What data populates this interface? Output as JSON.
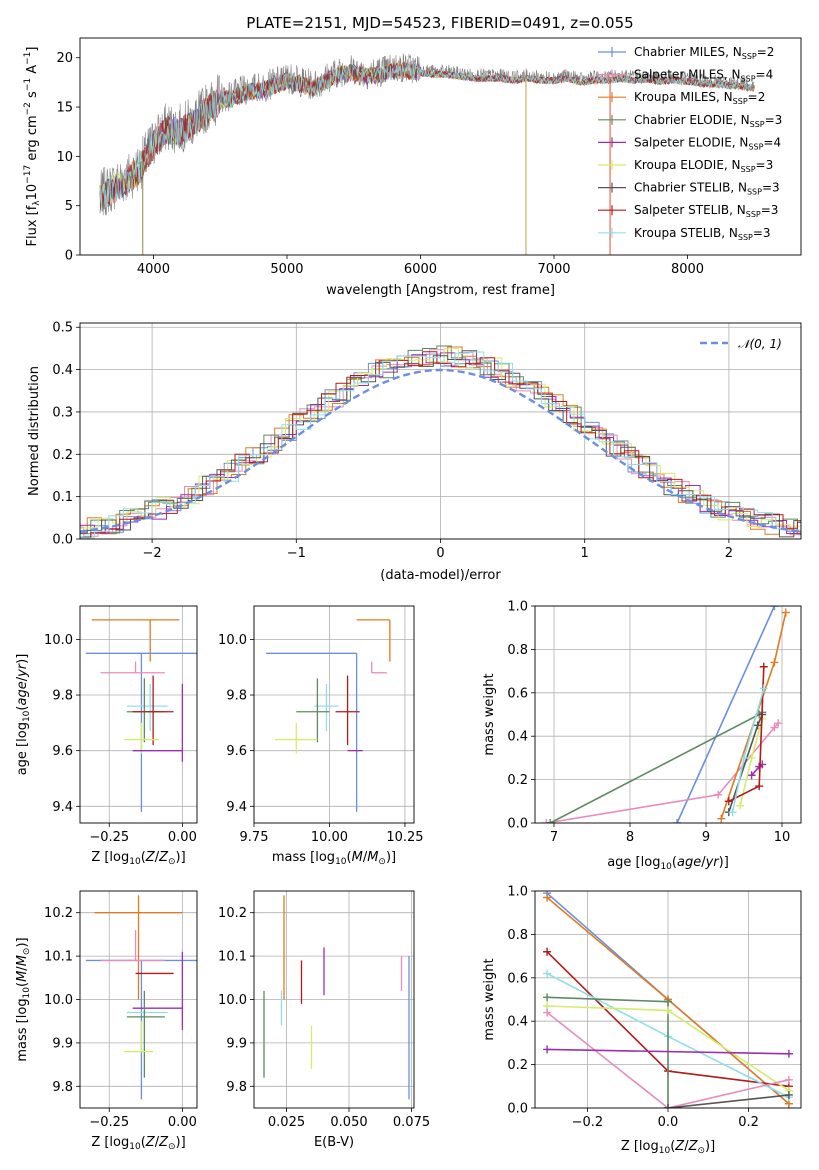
{
  "figure": {
    "title": "PLATE=2151, MJD=54523, FIBERID=0491, z=0.055"
  },
  "legend_colors": {
    "chabrier_miles": "#6b8fe0",
    "salpeter_miles": "#e88bbd",
    "kroupa_miles": "#e07b22",
    "chabrier_elodie": "#5e8a62",
    "salpeter_elodie": "#9a2fb0",
    "kroupa_elodie": "#d4ec6a",
    "chabrier_stelib": "#555555",
    "salpeter_stelib": "#b31b1b",
    "kroupa_stelib": "#8fdfe8"
  },
  "chart_data": [
    {
      "id": "spectrum",
      "type": "line",
      "title": "PLATE=2151, MJD=54523, FIBERID=0491, z=0.055",
      "xlabel": "wavelength [Angstrom, rest frame]",
      "ylabel_parts": [
        "Flux [f",
        "λ",
        "10",
        "−17",
        " erg cm",
        "−2",
        " s",
        "−1",
        " A",
        "−1",
        "]"
      ],
      "xlim": [
        3450,
        8850
      ],
      "ylim": [
        0,
        22
      ],
      "xticks": [
        4000,
        5000,
        6000,
        7000,
        8000
      ],
      "yticks": [
        0,
        5,
        10,
        15,
        20
      ],
      "grid": false,
      "legend_position": "upper-right",
      "envelope": {
        "x": [
          3600,
          3700,
          3800,
          3900,
          4000,
          4100,
          4200,
          4300,
          4400,
          4500,
          4600,
          4700,
          4800,
          4900,
          5000,
          5100,
          5200,
          5300,
          5400,
          5500,
          5600,
          5700,
          5800,
          5900,
          6000,
          6100,
          6200,
          6300,
          6400,
          6500,
          6600,
          6700,
          6800,
          6900,
          7000,
          7100,
          7200,
          7300,
          7400,
          7500,
          7600,
          7700,
          7800,
          7900,
          8000,
          8100,
          8200,
          8300,
          8400,
          8500
        ],
        "y": [
          6.0,
          7.0,
          7.8,
          9.0,
          11.5,
          13.0,
          12.8,
          13.6,
          15.0,
          16.0,
          16.2,
          16.8,
          17.0,
          17.4,
          18.0,
          17.6,
          17.2,
          18.0,
          18.6,
          18.8,
          18.4,
          18.6,
          19.0,
          19.0,
          18.8,
          18.6,
          18.6,
          18.4,
          18.2,
          18.2,
          18.2,
          18.0,
          18.2,
          18.0,
          18.0,
          18.2,
          17.8,
          18.0,
          18.0,
          18.2,
          18.0,
          18.1,
          17.9,
          18.0,
          17.9,
          17.7,
          17.6,
          17.5,
          17.4,
          17.2
        ]
      },
      "series": [
        {
          "name_parts": [
            "Chabrier MILES, N",
            "SSP",
            "=2"
          ],
          "color": "#6b8fe0"
        },
        {
          "name_parts": [
            "Salpeter MILES, N",
            "SSP",
            "=4"
          ],
          "color": "#e88bbd"
        },
        {
          "name_parts": [
            "Kroupa MILES, N",
            "SSP",
            "=2"
          ],
          "color": "#e07b22"
        },
        {
          "name_parts": [
            "Chabrier ELODIE, N",
            "SSP",
            "=3"
          ],
          "color": "#5e8a62"
        },
        {
          "name_parts": [
            "Salpeter ELODIE, N",
            "SSP",
            "=4"
          ],
          "color": "#9a2fb0"
        },
        {
          "name_parts": [
            "Kroupa ELODIE, N",
            "SSP",
            "=3"
          ],
          "color": "#d4ec6a"
        },
        {
          "name_parts": [
            "Chabrier STELIB, N",
            "SSP",
            "=3"
          ],
          "color": "#555555"
        },
        {
          "name_parts": [
            "Salpeter STELIB, N",
            "SSP",
            "=3"
          ],
          "color": "#b31b1b"
        },
        {
          "name_parts": [
            "Kroupa STELIB, N",
            "SSP",
            "=3"
          ],
          "color": "#8fdfe8"
        }
      ],
      "vertical_drops": [
        {
          "x": 3920,
          "color": "#8a8a40"
        },
        {
          "x": 6790,
          "color": "#c8a040"
        },
        {
          "x": 7420,
          "color": "#e0502a"
        }
      ]
    },
    {
      "id": "residuals",
      "type": "histogram",
      "xlabel": "(data-model)/error",
      "ylabel": "Normed distribution",
      "xlim": [
        -2.5,
        2.5
      ],
      "ylim": [
        0,
        0.51
      ],
      "xticks": [
        -2,
        -1,
        0,
        1,
        2
      ],
      "yticks": [
        0.0,
        0.1,
        0.2,
        0.3,
        0.4,
        0.5
      ],
      "grid": true,
      "legend_position": "upper-right",
      "reference_curve": {
        "name": "𝒩(0, 1)",
        "color": "#6b8fe0"
      }
    },
    {
      "id": "age_vs_Z",
      "type": "errorbar",
      "xlabel": "Z [log10(Z/Z⊙)]",
      "ylabel": "age  [log10(age/yr)]",
      "xlim": [
        -0.35,
        0.05
      ],
      "ylim": [
        9.34,
        10.12
      ],
      "xticks": [
        -0.25,
        0.0
      ],
      "yticks": [
        9.4,
        9.6,
        9.8,
        10.0
      ],
      "grid": true,
      "points": [
        {
          "color": "#e07b22",
          "x": -0.11,
          "xerr_lo": 0.2,
          "xerr_hi": 0.1,
          "y": 10.07,
          "yerr_lo": 0.15,
          "yerr_hi": 0.0
        },
        {
          "color": "#6b8fe0",
          "x": -0.14,
          "xerr_lo": 0.19,
          "xerr_hi": 0.19,
          "y": 9.95,
          "yerr_lo": 0.57,
          "yerr_hi": 0.0
        },
        {
          "color": "#e88bbd",
          "x": -0.16,
          "xerr_lo": 0.12,
          "xerr_hi": 0.1,
          "y": 9.88,
          "yerr_lo": 0.0,
          "yerr_hi": 0.04
        },
        {
          "color": "#8fdfe8",
          "x": -0.11,
          "xerr_lo": 0.08,
          "xerr_hi": 0.06,
          "y": 9.76,
          "yerr_lo": 0.09,
          "yerr_hi": 0.08
        },
        {
          "color": "#5e8a62",
          "x": -0.13,
          "xerr_lo": 0.06,
          "xerr_hi": 0.07,
          "y": 9.74,
          "yerr_lo": 0.11,
          "yerr_hi": 0.12
        },
        {
          "color": "#b31b1b",
          "x": -0.1,
          "xerr_lo": 0.07,
          "xerr_hi": 0.07,
          "y": 9.74,
          "yerr_lo": 0.12,
          "yerr_hi": 0.13
        },
        {
          "color": "#d4ec6a",
          "x": -0.14,
          "xerr_lo": 0.06,
          "xerr_hi": 0.06,
          "y": 9.64,
          "yerr_lo": 0.05,
          "yerr_hi": 0.06
        },
        {
          "color": "#9a2fb0",
          "x": -0.11,
          "xerr_lo": 0.06,
          "xerr_hi": 0.11,
          "y": 9.6,
          "yerr_lo": 0.0,
          "yerr_hi": 0.0
        },
        {
          "color": "#9a2fb0",
          "x": 0.0,
          "xerr_lo": 0.0,
          "xerr_hi": 0.0,
          "y": 9.7,
          "yerr_lo": 0.14,
          "yerr_hi": 0.14
        }
      ]
    },
    {
      "id": "age_vs_mass",
      "type": "errorbar",
      "xlabel": "mass [log10(M/M⊙)]",
      "ylabel": "",
      "xlim": [
        9.75,
        10.28
      ],
      "ylim": [
        9.34,
        10.12
      ],
      "xticks": [
        9.75,
        10.0,
        10.25
      ],
      "yticks": [
        9.4,
        9.6,
        9.8,
        10.0
      ],
      "grid": true,
      "points": [
        {
          "color": "#e07b22",
          "x": 10.2,
          "xerr_lo": 0.11,
          "xerr_hi": 0.0,
          "y": 10.07,
          "yerr_lo": 0.15,
          "yerr_hi": 0.0
        },
        {
          "color": "#6b8fe0",
          "x": 10.09,
          "xerr_lo": 0.3,
          "xerr_hi": 0.0,
          "y": 9.95,
          "yerr_lo": 0.57,
          "yerr_hi": 0.0
        },
        {
          "color": "#e88bbd",
          "x": 10.14,
          "xerr_lo": 0.0,
          "xerr_hi": 0.05,
          "y": 9.88,
          "yerr_lo": 0.0,
          "yerr_hi": 0.04
        },
        {
          "color": "#8fdfe8",
          "x": 9.99,
          "xerr_lo": 0.04,
          "xerr_hi": 0.04,
          "y": 9.76,
          "yerr_lo": 0.09,
          "yerr_hi": 0.08
        },
        {
          "color": "#5e8a62",
          "x": 9.96,
          "xerr_lo": 0.07,
          "xerr_hi": 0.04,
          "y": 9.74,
          "yerr_lo": 0.11,
          "yerr_hi": 0.12
        },
        {
          "color": "#b31b1b",
          "x": 10.06,
          "xerr_lo": 0.04,
          "xerr_hi": 0.04,
          "y": 9.74,
          "yerr_lo": 0.12,
          "yerr_hi": 0.13
        },
        {
          "color": "#d4ec6a",
          "x": 9.89,
          "xerr_lo": 0.07,
          "xerr_hi": 0.07,
          "y": 9.64,
          "yerr_lo": 0.05,
          "yerr_hi": 0.06
        },
        {
          "color": "#9a2fb0",
          "x": 10.06,
          "xerr_lo": 0.0,
          "xerr_hi": 0.05,
          "y": 9.6,
          "yerr_lo": 0.0,
          "yerr_hi": 0.0
        }
      ]
    },
    {
      "id": "weight_vs_age",
      "type": "line",
      "xlabel": "age  [log10(age/yr)]",
      "ylabel": "mass weight",
      "xlim": [
        6.75,
        10.25
      ],
      "ylim": [
        0,
        1.0
      ],
      "xticks": [
        7,
        8,
        9,
        10
      ],
      "yticks": [
        0.0,
        0.2,
        0.4,
        0.6,
        0.8,
        1.0
      ],
      "grid": true,
      "series": [
        {
          "color": "#6b8fe0",
          "points": [
            [
              8.62,
              0.0
            ],
            [
              9.9,
              1.0
            ]
          ]
        },
        {
          "color": "#e88bbd",
          "points": [
            [
              6.9,
              0.0
            ],
            [
              9.16,
              0.13
            ],
            [
              9.9,
              0.44
            ],
            [
              9.95,
              0.46
            ]
          ]
        },
        {
          "color": "#e07b22",
          "points": [
            [
              9.2,
              0.02
            ],
            [
              9.9,
              0.74
            ],
            [
              10.05,
              0.97
            ]
          ]
        },
        {
          "color": "#5e8a62",
          "points": [
            [
              6.95,
              0.0
            ],
            [
              9.7,
              0.5
            ],
            [
              9.74,
              0.51
            ]
          ]
        },
        {
          "color": "#9a2fb0",
          "points": [
            [
              9.6,
              0.22
            ],
            [
              9.7,
              0.26
            ],
            [
              9.74,
              0.27
            ]
          ]
        },
        {
          "color": "#d4ec6a",
          "points": [
            [
              9.45,
              0.08
            ],
            [
              9.6,
              0.3
            ],
            [
              9.74,
              0.48
            ]
          ]
        },
        {
          "color": "#555555",
          "points": [
            [
              9.3,
              0.05
            ],
            [
              9.68,
              0.45
            ],
            [
              9.74,
              0.5
            ]
          ]
        },
        {
          "color": "#b31b1b",
          "points": [
            [
              9.3,
              0.1
            ],
            [
              9.7,
              0.17
            ],
            [
              9.76,
              0.72
            ]
          ]
        },
        {
          "color": "#8fdfe8",
          "points": [
            [
              9.35,
              0.05
            ],
            [
              9.5,
              0.3
            ],
            [
              9.76,
              0.62
            ]
          ]
        }
      ]
    },
    {
      "id": "mass_vs_Z",
      "type": "errorbar",
      "xlabel": "Z [log10(Z/Z⊙)]",
      "ylabel": "mass [log10(M/M⊙)]",
      "xlim": [
        -0.35,
        0.05
      ],
      "ylim": [
        9.75,
        10.25
      ],
      "xticks": [
        -0.25,
        0.0
      ],
      "yticks": [
        9.8,
        9.9,
        10.0,
        10.1,
        10.2
      ],
      "grid": true,
      "points": [
        {
          "color": "#e07b22",
          "x": -0.15,
          "xerr_lo": 0.15,
          "xerr_hi": 0.15,
          "y": 10.2,
          "yerr_lo": 0.2,
          "yerr_hi": 0.04
        },
        {
          "color": "#6b8fe0",
          "x": -0.14,
          "xerr_lo": 0.19,
          "xerr_hi": 0.19,
          "y": 10.09,
          "yerr_lo": 0.32,
          "yerr_hi": 0.0
        },
        {
          "color": "#e88bbd",
          "x": -0.16,
          "xerr_lo": 0.12,
          "xerr_hi": 0.1,
          "y": 10.09,
          "yerr_lo": 0.0,
          "yerr_hi": 0.07
        },
        {
          "color": "#b31b1b",
          "x": -0.1,
          "xerr_lo": 0.06,
          "xerr_hi": 0.07,
          "y": 10.06,
          "yerr_lo": 0.0,
          "yerr_hi": 0.0
        },
        {
          "color": "#9a2fb0",
          "x": -0.11,
          "xerr_lo": 0.06,
          "xerr_hi": 0.11,
          "y": 9.98,
          "yerr_lo": 0.0,
          "yerr_hi": 0.0
        },
        {
          "color": "#9a2fb0",
          "x": 0.0,
          "xerr_lo": 0.0,
          "xerr_hi": 0.0,
          "y": 10.02,
          "yerr_lo": 0.09,
          "yerr_hi": 0.09
        },
        {
          "color": "#8fdfe8",
          "x": -0.11,
          "xerr_lo": 0.08,
          "xerr_hi": 0.06,
          "y": 9.97,
          "yerr_lo": 0.0,
          "yerr_hi": 0.0
        },
        {
          "color": "#5e8a62",
          "x": -0.13,
          "xerr_lo": 0.06,
          "xerr_hi": 0.07,
          "y": 9.96,
          "yerr_lo": 0.14,
          "yerr_hi": 0.06
        },
        {
          "color": "#d4ec6a",
          "x": -0.14,
          "xerr_lo": 0.06,
          "xerr_hi": 0.04,
          "y": 9.88,
          "yerr_lo": 0.0,
          "yerr_hi": 0.07
        }
      ]
    },
    {
      "id": "mass_vs_ebv",
      "type": "errorbar",
      "xlabel": "E(B-V)",
      "ylabel": "",
      "xlim": [
        0.012,
        0.076
      ],
      "ylim": [
        9.75,
        10.25
      ],
      "xticks": [
        0.025,
        0.05,
        0.075
      ],
      "yticks": [
        9.8,
        9.9,
        10.0,
        10.1,
        10.2
      ],
      "grid": true,
      "points": [
        {
          "color": "#e07b22",
          "x": 0.024,
          "y": 10.2,
          "yerr_lo": 0.2,
          "yerr_hi": 0.04
        },
        {
          "color": "#6b8fe0",
          "x": 0.074,
          "y": 10.09,
          "yerr_lo": 0.32,
          "yerr_hi": 0.01
        },
        {
          "color": "#e88bbd",
          "x": 0.071,
          "y": 10.1,
          "yerr_lo": 0.08,
          "yerr_hi": 0.0
        },
        {
          "color": "#b31b1b",
          "x": 0.031,
          "y": 10.04,
          "yerr_lo": 0.05,
          "yerr_hi": 0.05
        },
        {
          "color": "#9a2fb0",
          "x": 0.04,
          "y": 10.08,
          "yerr_lo": 0.07,
          "yerr_hi": 0.04
        },
        {
          "color": "#8fdfe8",
          "x": 0.023,
          "y": 9.98,
          "yerr_lo": 0.04,
          "yerr_hi": 0.04
        },
        {
          "color": "#5e8a62",
          "x": 0.016,
          "y": 9.92,
          "yerr_lo": 0.1,
          "yerr_hi": 0.1
        },
        {
          "color": "#d4ec6a",
          "x": 0.035,
          "y": 9.91,
          "yerr_lo": 0.07,
          "yerr_hi": 0.03
        }
      ]
    },
    {
      "id": "weight_vs_Z",
      "type": "line",
      "xlabel": "Z [log10(Z/Z⊙)]",
      "ylabel": "mass weight",
      "xlim": [
        -0.33,
        0.33
      ],
      "ylim": [
        0,
        1.0
      ],
      "xticks": [
        -0.2,
        0.0,
        0.2
      ],
      "yticks": [
        0.0,
        0.2,
        0.4,
        0.6,
        0.8,
        1.0
      ],
      "grid": true,
      "series": [
        {
          "color": "#6b8fe0",
          "points": [
            [
              -0.3,
              0.99
            ],
            [
              0.0,
              0.5
            ],
            [
              0.3,
              0.02
            ]
          ]
        },
        {
          "color": "#e07b22",
          "points": [
            [
              -0.3,
              0.97
            ],
            [
              0.0,
              0.5
            ],
            [
              0.3,
              0.02
            ]
          ]
        },
        {
          "color": "#b31b1b",
          "points": [
            [
              -0.3,
              0.72
            ],
            [
              0.0,
              0.17
            ],
            [
              0.3,
              0.1
            ]
          ]
        },
        {
          "color": "#8fdfe8",
          "points": [
            [
              -0.3,
              0.62
            ],
            [
              0.0,
              0.33
            ],
            [
              0.3,
              0.05
            ]
          ]
        },
        {
          "color": "#5e8a62",
          "points": [
            [
              -0.3,
              0.51
            ],
            [
              0.0,
              0.49
            ],
            [
              0.0,
              0.0
            ]
          ]
        },
        {
          "color": "#d4ec6a",
          "points": [
            [
              -0.3,
              0.47
            ],
            [
              0.0,
              0.45
            ],
            [
              0.3,
              0.08
            ]
          ]
        },
        {
          "color": "#e88bbd",
          "points": [
            [
              -0.3,
              0.44
            ],
            [
              0.0,
              0.0
            ],
            [
              0.3,
              0.13
            ]
          ]
        },
        {
          "color": "#9a2fb0",
          "points": [
            [
              -0.3,
              0.27
            ],
            [
              0.3,
              0.25
            ]
          ]
        },
        {
          "color": "#555555",
          "points": [
            [
              0.3,
              0.06
            ],
            [
              0.0,
              0.0
            ]
          ]
        }
      ]
    }
  ]
}
